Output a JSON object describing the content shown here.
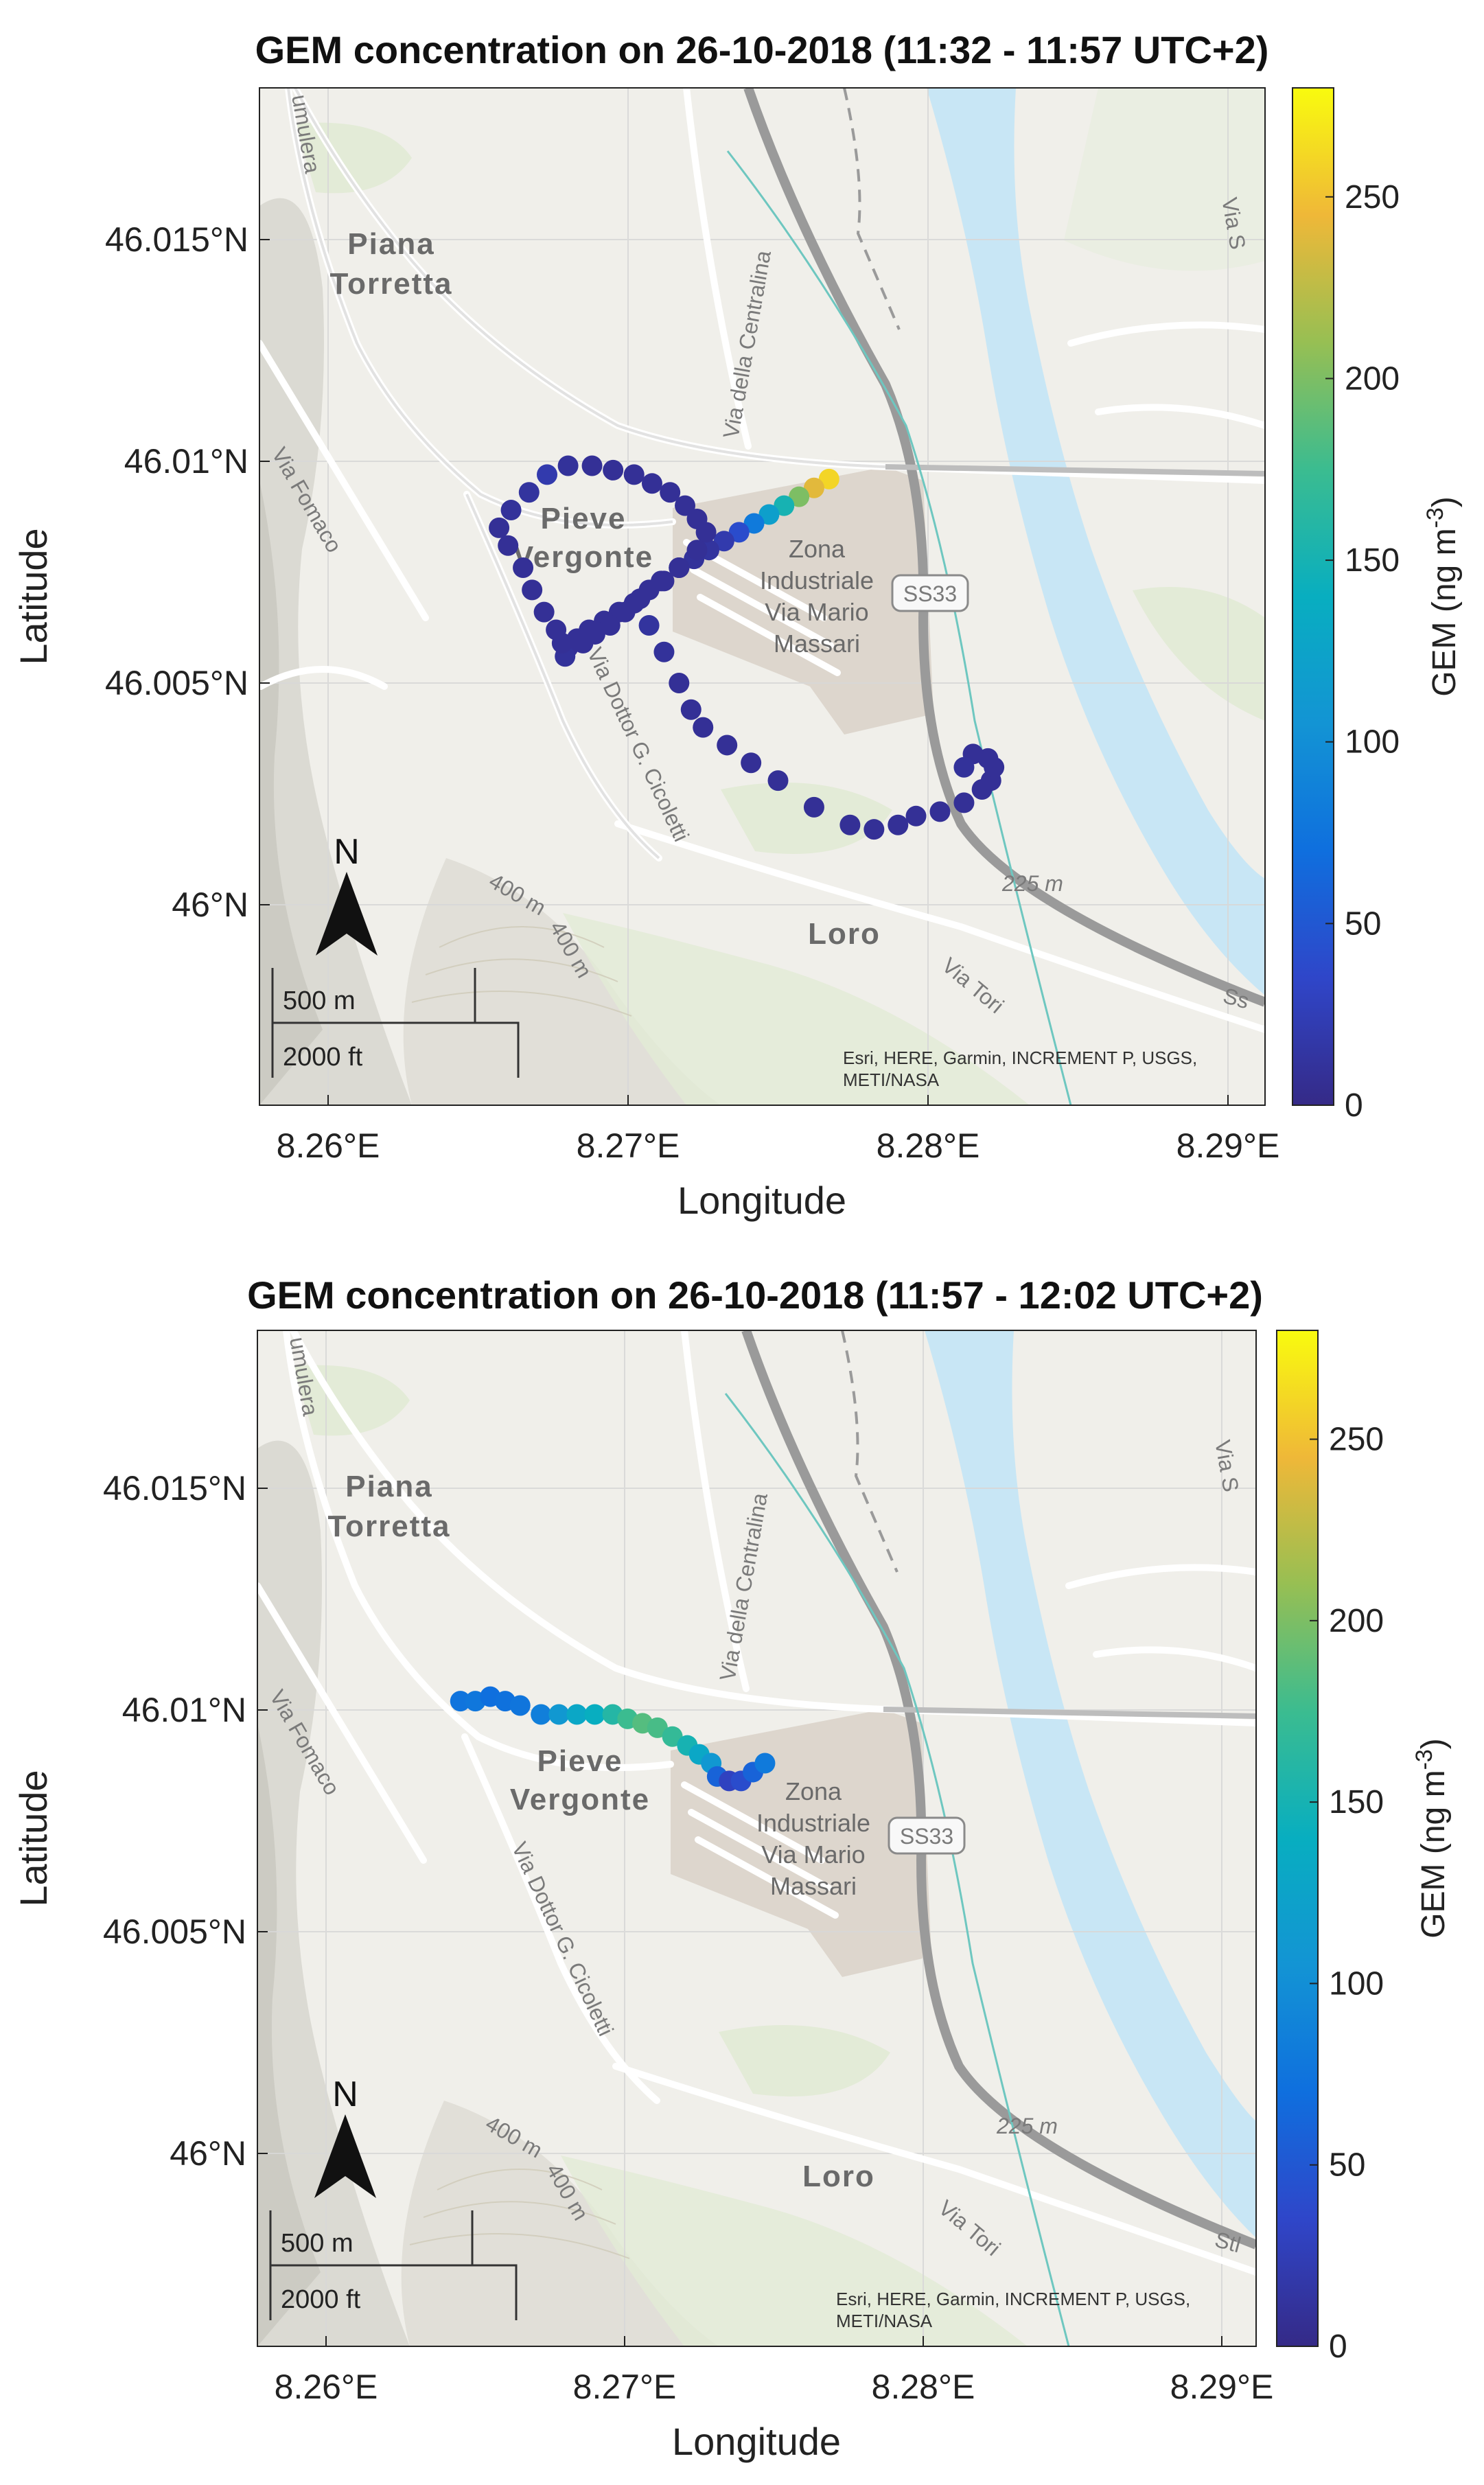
{
  "panels": [
    {
      "title": "GEM concentration on 26-10-2018 (11:32 - 11:57 UTC+2)",
      "xlabel": "Longitude",
      "ylabel": "Latitude",
      "xticks": [
        "8.26°E",
        "8.27°E",
        "8.28°E",
        "8.29°E"
      ],
      "yticks": [
        "46.015°N",
        "46.01°N",
        "46.005°N",
        "46°N"
      ],
      "colorbar": {
        "label": "GEM (ng m",
        "label_sup": "-3",
        "label_end": ")",
        "ticks": [
          "0",
          "50",
          "100",
          "150",
          "200",
          "250"
        ],
        "max": 280
      },
      "place_labels": [
        "Piana",
        "Torretta",
        "Pieve",
        "Vergonte",
        "Zona",
        "Industriale",
        "Via Mario",
        "Massari",
        "Loro"
      ],
      "road_labels": [
        "Via della Centralina",
        "Via Fomaco",
        "Via Dottor G. Cicoletti",
        "Via Tori",
        "Via S",
        "Ss",
        "umulera",
        "400 m",
        "400 m"
      ],
      "elevation_label": "225 m",
      "shield_label": "SS33",
      "attribution": [
        "Esri, HERE, Garmin, INCREMENT P, USGS,",
        "METI/NASA"
      ],
      "scalebar": [
        "500 m",
        "2000 ft"
      ],
      "north_label": "N",
      "points": [
        [
          8.2767,
          46.0096,
          260
        ],
        [
          8.2762,
          46.0094,
          240
        ],
        [
          8.2757,
          46.0092,
          200
        ],
        [
          8.2752,
          46.009,
          150
        ],
        [
          8.2747,
          46.0088,
          120
        ],
        [
          8.2742,
          46.0086,
          80
        ],
        [
          8.2737,
          46.0084,
          40
        ],
        [
          8.2732,
          46.0082,
          20
        ],
        [
          8.2727,
          46.008,
          12
        ],
        [
          8.2722,
          46.0078,
          10
        ],
        [
          8.2717,
          46.0076,
          8
        ],
        [
          8.2712,
          46.0073,
          8
        ],
        [
          8.2707,
          46.0071,
          8
        ],
        [
          8.2702,
          46.0068,
          8
        ],
        [
          8.2697,
          46.0066,
          8
        ],
        [
          8.2692,
          46.0064,
          8
        ],
        [
          8.2687,
          46.0062,
          8
        ],
        [
          8.2683,
          46.006,
          8
        ],
        [
          8.268,
          46.0058,
          8
        ],
        [
          8.2679,
          46.0056,
          10
        ],
        [
          8.2678,
          46.0059,
          8
        ],
        [
          8.2676,
          46.0062,
          8
        ],
        [
          8.2672,
          46.0066,
          8
        ],
        [
          8.2668,
          46.0071,
          8
        ],
        [
          8.2665,
          46.0076,
          8
        ],
        [
          8.266,
          46.0081,
          8
        ],
        [
          8.2657,
          46.0085,
          8
        ],
        [
          8.2661,
          46.0089,
          10
        ],
        [
          8.2667,
          46.0093,
          12
        ],
        [
          8.2673,
          46.0097,
          20
        ],
        [
          8.268,
          46.0099,
          10
        ],
        [
          8.2688,
          46.0099,
          8
        ],
        [
          8.2695,
          46.0098,
          8
        ],
        [
          8.2702,
          46.0097,
          8
        ],
        [
          8.2708,
          46.0095,
          8
        ],
        [
          8.2714,
          46.0093,
          8
        ],
        [
          8.2719,
          46.009,
          8
        ],
        [
          8.2723,
          46.0087,
          8
        ],
        [
          8.2726,
          46.0084,
          8
        ],
        [
          8.2723,
          46.008,
          8
        ],
        [
          8.2717,
          46.0076,
          8
        ],
        [
          8.2711,
          46.0073,
          8
        ],
        [
          8.2704,
          46.0069,
          8
        ],
        [
          8.2699,
          46.0066,
          8
        ],
        [
          8.2694,
          46.0063,
          8
        ],
        [
          8.2689,
          46.0061,
          8
        ],
        [
          8.2685,
          46.0059,
          8
        ],
        [
          8.2707,
          46.0063,
          12
        ],
        [
          8.2712,
          46.0057,
          10
        ],
        [
          8.2717,
          46.005,
          8
        ],
        [
          8.2721,
          46.0044,
          8
        ],
        [
          8.2725,
          46.004,
          8
        ],
        [
          8.2733,
          46.0036,
          8
        ],
        [
          8.2741,
          46.0032,
          8
        ],
        [
          8.275,
          46.0028,
          8
        ],
        [
          8.2762,
          46.0022,
          8
        ],
        [
          8.2774,
          46.0018,
          8
        ],
        [
          8.2782,
          46.0017,
          8
        ],
        [
          8.279,
          46.0018,
          8
        ],
        [
          8.2796,
          46.002,
          8
        ],
        [
          8.2804,
          46.0021,
          8
        ],
        [
          8.2812,
          46.0023,
          8
        ],
        [
          8.2818,
          46.0026,
          8
        ],
        [
          8.2821,
          46.0028,
          8
        ],
        [
          8.2822,
          46.0031,
          8
        ],
        [
          8.282,
          46.0033,
          8
        ],
        [
          8.2815,
          46.0034,
          8
        ],
        [
          8.2812,
          46.0031,
          10
        ]
      ]
    },
    {
      "title": "GEM concentration on 26-10-2018 (11:57 - 12:02 UTC+2)",
      "xlabel": "Longitude",
      "ylabel": "Latitude",
      "xticks": [
        "8.26°E",
        "8.27°E",
        "8.28°E",
        "8.29°E"
      ],
      "yticks": [
        "46.015°N",
        "46.01°N",
        "46.005°N",
        "46°N"
      ],
      "colorbar": {
        "label": "GEM (ng m",
        "label_sup": "-3",
        "label_end": ")",
        "ticks": [
          "0",
          "50",
          "100",
          "150",
          "200",
          "250"
        ],
        "max": 280
      },
      "place_labels": [
        "Piana",
        "Torretta",
        "Pieve",
        "Vergonte",
        "Zona",
        "Industriale",
        "Via Mario",
        "Massari",
        "Loro"
      ],
      "road_labels": [
        "Via della Centralina",
        "Via Fomaco",
        "Via Dottor G. Cicoletti",
        "Via Tori",
        "Via S",
        "Stl",
        "umulera",
        "400 m",
        "400 m"
      ],
      "elevation_label": "225 m",
      "shield_label": "SS33",
      "attribution": [
        "Esri, HERE, Garmin, INCREMENT P, USGS,",
        "METI/NASA"
      ],
      "scalebar": [
        "500 m",
        "2000 ft"
      ],
      "north_label": "N",
      "points": [
        [
          8.2645,
          46.0102,
          75
        ],
        [
          8.265,
          46.0102,
          78
        ],
        [
          8.2655,
          46.0103,
          70
        ],
        [
          8.266,
          46.0102,
          72
        ],
        [
          8.2665,
          46.0101,
          76
        ],
        [
          8.2672,
          46.0099,
          85
        ],
        [
          8.2678,
          46.0099,
          110
        ],
        [
          8.2684,
          46.0099,
          130
        ],
        [
          8.269,
          46.0099,
          140
        ],
        [
          8.2696,
          46.0099,
          160
        ],
        [
          8.2701,
          46.0098,
          175
        ],
        [
          8.2706,
          46.0097,
          185
        ],
        [
          8.2711,
          46.0096,
          180
        ],
        [
          8.2716,
          46.0094,
          170
        ],
        [
          8.2721,
          46.0092,
          150
        ],
        [
          8.2725,
          46.009,
          130
        ],
        [
          8.2729,
          46.0088,
          110
        ],
        [
          8.2731,
          46.0085,
          60
        ],
        [
          8.2735,
          46.0084,
          30
        ],
        [
          8.2739,
          46.0084,
          40
        ],
        [
          8.2743,
          46.0086,
          60
        ],
        [
          8.2747,
          46.0088,
          80
        ]
      ]
    }
  ]
}
